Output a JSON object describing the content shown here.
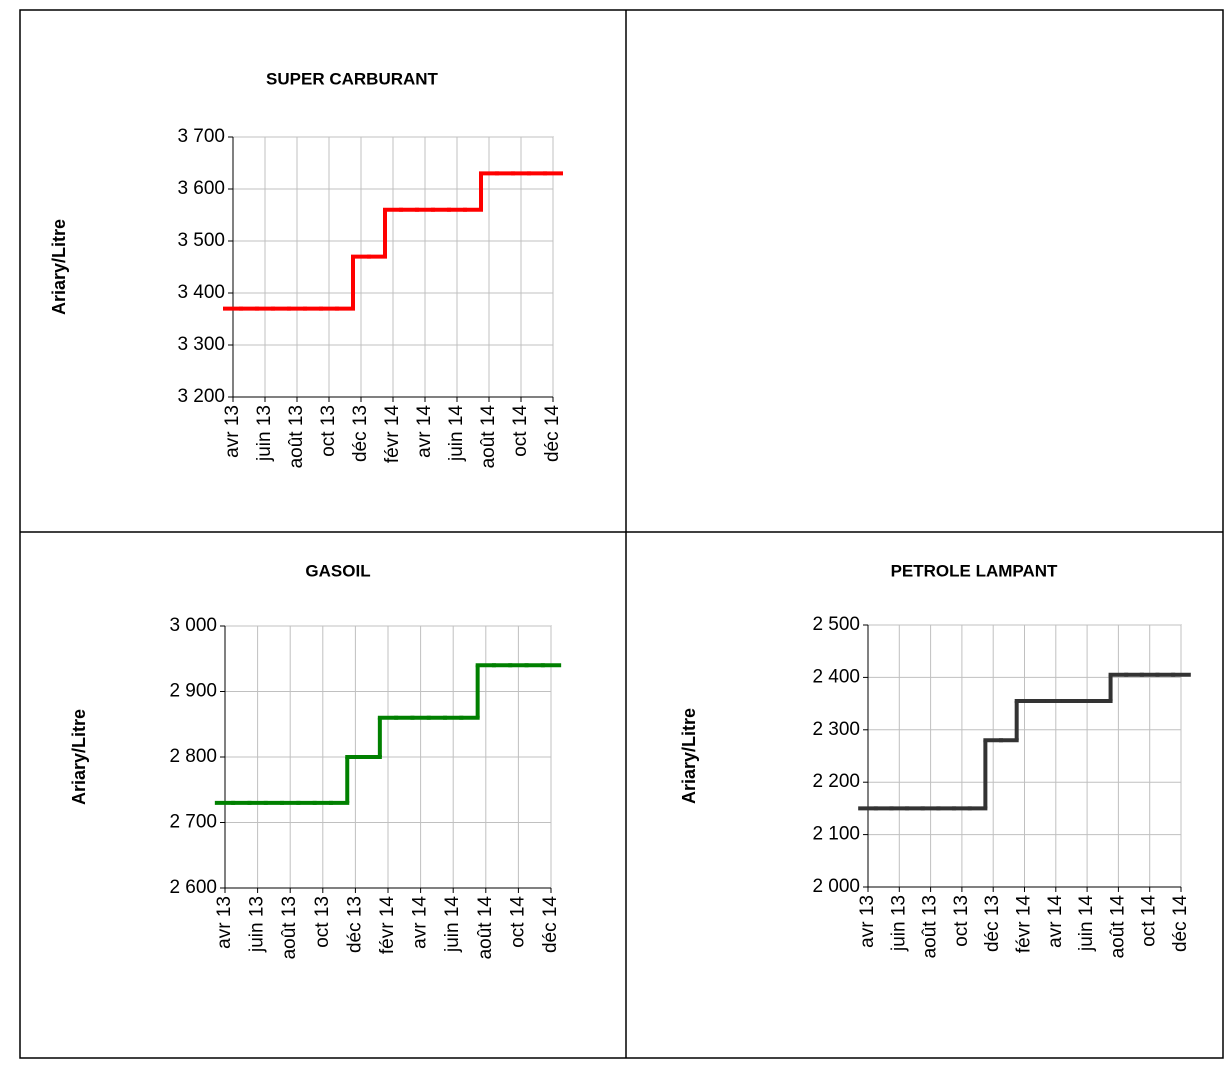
{
  "chart_data": [
    {
      "type": "line",
      "title": "SUPER CARBURANT",
      "y_label": "Ariary/Litre",
      "step": true,
      "grid": true,
      "color": "#ff0000",
      "categories": [
        "avr 13",
        null,
        "juin 13",
        null,
        "août 13",
        null,
        "oct 13",
        null,
        "déc 13",
        null,
        "févr 14",
        null,
        "avr 14",
        null,
        "juin 14",
        null,
        "août 14",
        null,
        "oct 14",
        null,
        "déc 14"
      ],
      "values": [
        3370,
        3370,
        3370,
        3370,
        3370,
        3370,
        3370,
        3370,
        3470,
        3470,
        3560,
        3560,
        3560,
        3560,
        3560,
        3560,
        3630,
        3630,
        3630,
        3630,
        3630
      ],
      "ylim": [
        3200,
        3700
      ],
      "yticks": [
        {
          "value": 3200,
          "label": "3 200"
        },
        {
          "value": 3300,
          "label": "3 300"
        },
        {
          "value": 3400,
          "label": "3 400"
        },
        {
          "value": 3500,
          "label": "3 500"
        },
        {
          "value": 3600,
          "label": "3 600"
        },
        {
          "value": 3700,
          "label": "3 700"
        }
      ]
    },
    {
      "type": "line",
      "title": "GASOIL",
      "y_label": "Ariary/Litre",
      "step": true,
      "grid": true,
      "color": "#008000",
      "categories": [
        "avr 13",
        null,
        "juin 13",
        null,
        "août 13",
        null,
        "oct 13",
        null,
        "déc 13",
        null,
        "févr 14",
        null,
        "avr 14",
        null,
        "juin 14",
        null,
        "août 14",
        null,
        "oct 14",
        null,
        "déc 14"
      ],
      "values": [
        2730,
        2730,
        2730,
        2730,
        2730,
        2730,
        2730,
        2730,
        2800,
        2800,
        2860,
        2860,
        2860,
        2860,
        2860,
        2860,
        2940,
        2940,
        2940,
        2940,
        2940
      ],
      "ylim": [
        2600,
        3000
      ],
      "yticks": [
        {
          "value": 2600,
          "label": "2 600"
        },
        {
          "value": 2700,
          "label": "2 700"
        },
        {
          "value": 2800,
          "label": "2 800"
        },
        {
          "value": 2900,
          "label": "2 900"
        },
        {
          "value": 3000,
          "label": "3 000"
        }
      ]
    },
    {
      "type": "line",
      "title": "PETROLE LAMPANT",
      "y_label": "Ariary/Litre",
      "step": true,
      "grid": true,
      "color": "#333333",
      "categories": [
        "avr 13",
        null,
        "juin 13",
        null,
        "août 13",
        null,
        "oct 13",
        null,
        "déc 13",
        null,
        "févr 14",
        null,
        "avr 14",
        null,
        "juin 14",
        null,
        "août 14",
        null,
        "oct 14",
        null,
        "déc 14"
      ],
      "values": [
        2150,
        2150,
        2150,
        2150,
        2150,
        2150,
        2150,
        2150,
        2280,
        2280,
        2355,
        2355,
        2355,
        2355,
        2355,
        2355,
        2405,
        2405,
        2405,
        2405,
        2405
      ],
      "ylim": [
        2000,
        2500
      ],
      "yticks": [
        {
          "value": 2000,
          "label": "2 000"
        },
        {
          "value": 2100,
          "label": "2 100"
        },
        {
          "value": 2200,
          "label": "2 200"
        },
        {
          "value": 2300,
          "label": "2 300"
        },
        {
          "value": 2400,
          "label": "2 400"
        },
        {
          "value": 2500,
          "label": "2 500"
        }
      ]
    }
  ]
}
